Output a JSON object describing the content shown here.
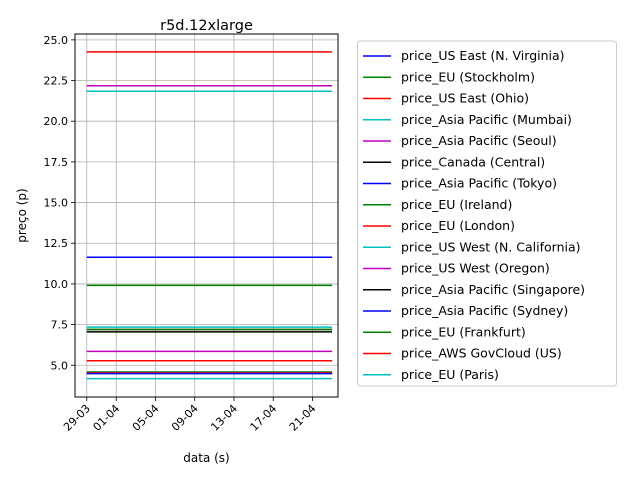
{
  "chart_data": {
    "type": "line",
    "title": "r5d.12xlarge",
    "xlabel": "data (s)",
    "ylabel": "preço (p)",
    "x_ticks": [
      "29-03",
      "01-04",
      "05-04",
      "09-04",
      "13-04",
      "17-04",
      "21-04"
    ],
    "x_tick_days": [
      0,
      3,
      7,
      11,
      15,
      19,
      23
    ],
    "xlim": [
      -1.2,
      25.6
    ],
    "x_range": [
      "29-03",
      "23-04"
    ],
    "y_ticks": [
      "5.0",
      "7.5",
      "10.0",
      "12.5",
      "15.0",
      "17.5",
      "20.0",
      "22.5",
      "25.0"
    ],
    "ylim": [
      3.05,
      25.36
    ],
    "grid": true,
    "legend_position": "outside-right",
    "series": [
      {
        "name": "price_US East (N. Virginia)",
        "color": "#0000ff",
        "values": [
          4.536,
          4.536
        ]
      },
      {
        "name": "price_EU (Stockholm)",
        "color": "#008000",
        "values": [
          4.584,
          4.584
        ]
      },
      {
        "name": "price_US East (Ohio)",
        "color": "#ff0000",
        "values": [
          4.536,
          4.536
        ]
      },
      {
        "name": "price_Asia Pacific (Mumbai)",
        "color": "#00bfbf",
        "values": [
          4.176,
          4.176
        ]
      },
      {
        "name": "price_Asia Pacific (Seoul)",
        "color": "#bf00bf",
        "values": [
          5.856,
          5.856
        ]
      },
      {
        "name": "price_Canada (Central)",
        "color": "#000000",
        "values": [
          7.056,
          7.056
        ]
      },
      {
        "name": "price_Asia Pacific (Tokyo)",
        "color": "#0000ff",
        "values": [
          11.64,
          11.64
        ]
      },
      {
        "name": "price_EU (Ireland)",
        "color": "#008000",
        "values": [
          9.912,
          9.912
        ]
      },
      {
        "name": "price_EU (London)",
        "color": "#ff0000",
        "values": [
          5.28,
          5.28
        ]
      },
      {
        "name": "price_US West (N. California)",
        "color": "#00bfbf",
        "values": [
          7.344,
          7.344
        ]
      },
      {
        "name": "price_US West (Oregon)",
        "color": "#bf00bf",
        "values": [
          22.176,
          22.176
        ]
      },
      {
        "name": "price_Asia Pacific (Singapore)",
        "color": "#000000",
        "values": [
          7.2,
          7.2
        ]
      },
      {
        "name": "price_Asia Pacific (Sydney)",
        "color": "#0000ff",
        "values": [
          4.488,
          4.488
        ]
      },
      {
        "name": "price_EU (Frankfurt)",
        "color": "#008000",
        "values": [
          7.2,
          7.2
        ]
      },
      {
        "name": "price_AWS GovCloud (US)",
        "color": "#ff0000",
        "values": [
          24.264,
          24.264
        ]
      },
      {
        "name": "price_EU (Paris)",
        "color": "#00bfbf",
        "values": [
          21.84,
          21.84
        ]
      }
    ]
  }
}
